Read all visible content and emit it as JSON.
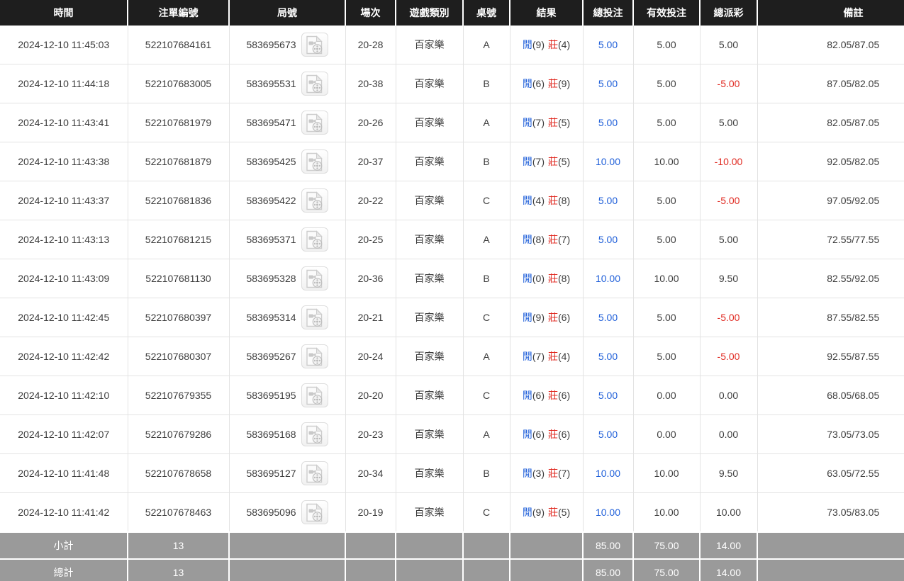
{
  "columns": [
    {
      "key": "time",
      "label": "時間"
    },
    {
      "key": "bet_id",
      "label": "注單編號"
    },
    {
      "key": "round_id",
      "label": "局號"
    },
    {
      "key": "session",
      "label": "場次"
    },
    {
      "key": "game_type",
      "label": "遊戲類別"
    },
    {
      "key": "table_no",
      "label": "桌號"
    },
    {
      "key": "result",
      "label": "結果"
    },
    {
      "key": "total_bet",
      "label": "總投注"
    },
    {
      "key": "valid_bet",
      "label": "有效投注"
    },
    {
      "key": "total_payout",
      "label": "總派彩"
    },
    {
      "key": "remark",
      "label": "備註"
    }
  ],
  "result_labels": {
    "player": "閒",
    "banker": "莊"
  },
  "icons": {
    "video": "video-replay-icon"
  },
  "colors": {
    "header_bg": "#1e1e1e",
    "footer_bg": "#9a9a9a",
    "blue": "#1f5fd9",
    "red": "#e02a21",
    "text": "#3c3c3c",
    "border": "#e3e3e3"
  },
  "rows": [
    {
      "time": "2024-12-10 11:45:03",
      "bet_id": "522107684161",
      "round_id": "583695673",
      "session": "20-28",
      "game_type": "百家樂",
      "table_no": "A",
      "player_score": "(9)",
      "banker_score": "(4)",
      "total_bet": "5.00",
      "valid_bet": "5.00",
      "total_payout": "5.00",
      "remark": "82.05/87.05"
    },
    {
      "time": "2024-12-10 11:44:18",
      "bet_id": "522107683005",
      "round_id": "583695531",
      "session": "20-38",
      "game_type": "百家樂",
      "table_no": "B",
      "player_score": "(6)",
      "banker_score": "(9)",
      "total_bet": "5.00",
      "valid_bet": "5.00",
      "total_payout": "-5.00",
      "remark": "87.05/82.05"
    },
    {
      "time": "2024-12-10 11:43:41",
      "bet_id": "522107681979",
      "round_id": "583695471",
      "session": "20-26",
      "game_type": "百家樂",
      "table_no": "A",
      "player_score": "(7)",
      "banker_score": "(5)",
      "total_bet": "5.00",
      "valid_bet": "5.00",
      "total_payout": "5.00",
      "remark": "82.05/87.05"
    },
    {
      "time": "2024-12-10 11:43:38",
      "bet_id": "522107681879",
      "round_id": "583695425",
      "session": "20-37",
      "game_type": "百家樂",
      "table_no": "B",
      "player_score": "(7)",
      "banker_score": "(5)",
      "total_bet": "10.00",
      "valid_bet": "10.00",
      "total_payout": "-10.00",
      "remark": "92.05/82.05"
    },
    {
      "time": "2024-12-10 11:43:37",
      "bet_id": "522107681836",
      "round_id": "583695422",
      "session": "20-22",
      "game_type": "百家樂",
      "table_no": "C",
      "player_score": "(4)",
      "banker_score": "(8)",
      "total_bet": "5.00",
      "valid_bet": "5.00",
      "total_payout": "-5.00",
      "remark": "97.05/92.05"
    },
    {
      "time": "2024-12-10 11:43:13",
      "bet_id": "522107681215",
      "round_id": "583695371",
      "session": "20-25",
      "game_type": "百家樂",
      "table_no": "A",
      "player_score": "(8)",
      "banker_score": "(7)",
      "total_bet": "5.00",
      "valid_bet": "5.00",
      "total_payout": "5.00",
      "remark": "72.55/77.55"
    },
    {
      "time": "2024-12-10 11:43:09",
      "bet_id": "522107681130",
      "round_id": "583695328",
      "session": "20-36",
      "game_type": "百家樂",
      "table_no": "B",
      "player_score": "(0)",
      "banker_score": "(8)",
      "total_bet": "10.00",
      "valid_bet": "10.00",
      "total_payout": "9.50",
      "remark": "82.55/92.05"
    },
    {
      "time": "2024-12-10 11:42:45",
      "bet_id": "522107680397",
      "round_id": "583695314",
      "session": "20-21",
      "game_type": "百家樂",
      "table_no": "C",
      "player_score": "(9)",
      "banker_score": "(6)",
      "total_bet": "5.00",
      "valid_bet": "5.00",
      "total_payout": "-5.00",
      "remark": "87.55/82.55"
    },
    {
      "time": "2024-12-10 11:42:42",
      "bet_id": "522107680307",
      "round_id": "583695267",
      "session": "20-24",
      "game_type": "百家樂",
      "table_no": "A",
      "player_score": "(7)",
      "banker_score": "(4)",
      "total_bet": "5.00",
      "valid_bet": "5.00",
      "total_payout": "-5.00",
      "remark": "92.55/87.55"
    },
    {
      "time": "2024-12-10 11:42:10",
      "bet_id": "522107679355",
      "round_id": "583695195",
      "session": "20-20",
      "game_type": "百家樂",
      "table_no": "C",
      "player_score": "(6)",
      "banker_score": "(6)",
      "total_bet": "5.00",
      "valid_bet": "0.00",
      "total_payout": "0.00",
      "remark": "68.05/68.05"
    },
    {
      "time": "2024-12-10 11:42:07",
      "bet_id": "522107679286",
      "round_id": "583695168",
      "session": "20-23",
      "game_type": "百家樂",
      "table_no": "A",
      "player_score": "(6)",
      "banker_score": "(6)",
      "total_bet": "5.00",
      "valid_bet": "0.00",
      "total_payout": "0.00",
      "remark": "73.05/73.05"
    },
    {
      "time": "2024-12-10 11:41:48",
      "bet_id": "522107678658",
      "round_id": "583695127",
      "session": "20-34",
      "game_type": "百家樂",
      "table_no": "B",
      "player_score": "(3)",
      "banker_score": "(7)",
      "total_bet": "10.00",
      "valid_bet": "10.00",
      "total_payout": "9.50",
      "remark": "63.05/72.55"
    },
    {
      "time": "2024-12-10 11:41:42",
      "bet_id": "522107678463",
      "round_id": "583695096",
      "session": "20-19",
      "game_type": "百家樂",
      "table_no": "C",
      "player_score": "(9)",
      "banker_score": "(5)",
      "total_bet": "10.00",
      "valid_bet": "10.00",
      "total_payout": "10.00",
      "remark": "73.05/83.05"
    }
  ],
  "footer": {
    "rows": [
      {
        "key": "subtotal",
        "label": "小計",
        "count": "13",
        "total_bet": "85.00",
        "valid_bet": "75.00",
        "total_payout": "14.00"
      },
      {
        "key": "total",
        "label": "總計",
        "count": "13",
        "total_bet": "85.00",
        "valid_bet": "75.00",
        "total_payout": "14.00"
      }
    ]
  }
}
